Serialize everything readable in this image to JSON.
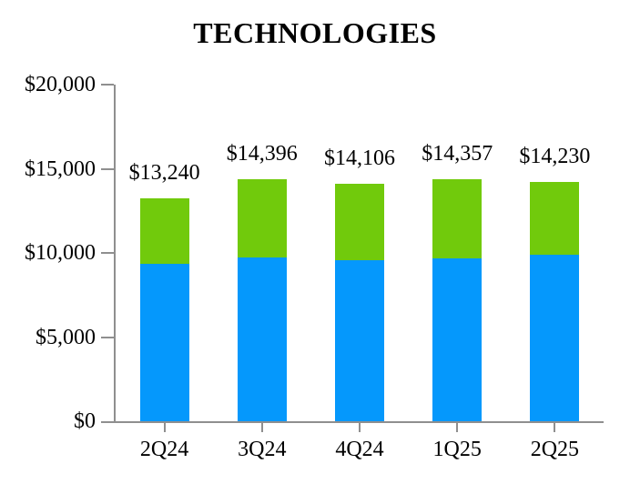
{
  "title": "TECHNOLOGIES",
  "colors": {
    "bar_bottom_blue": "#0598fc",
    "bar_top_green": "#71ca0c",
    "axis_gray": "#8f8f8f",
    "text_black": "#000000",
    "background": "#ffffff"
  },
  "chart_data": {
    "type": "bar",
    "stacked": true,
    "title": "TECHNOLOGIES",
    "categories": [
      "2Q24",
      "3Q24",
      "4Q24",
      "1Q25",
      "2Q25"
    ],
    "series": [
      {
        "name": "bottom-segment-blue",
        "color": "#0598fc",
        "values": [
          9350,
          9730,
          9570,
          9680,
          9890
        ]
      },
      {
        "name": "top-segment-green",
        "color": "#71ca0c",
        "values": [
          3890,
          4666,
          4536,
          4677,
          4340
        ]
      }
    ],
    "totals": [
      13240,
      14396,
      14106,
      14357,
      14230
    ],
    "total_labels": [
      "$13,240",
      "$14,396",
      "$14,106",
      "$14,357",
      "$14,230"
    ],
    "xlabel": "",
    "ylabel": "",
    "ylim": [
      0,
      20000
    ],
    "ytick_interval": 5000,
    "ytick_labels": [
      "$0",
      "$5,000",
      "$10,000",
      "$15,000",
      "$20,000"
    ],
    "grid": false,
    "legend": "none",
    "data_label_prefix": "$"
  }
}
